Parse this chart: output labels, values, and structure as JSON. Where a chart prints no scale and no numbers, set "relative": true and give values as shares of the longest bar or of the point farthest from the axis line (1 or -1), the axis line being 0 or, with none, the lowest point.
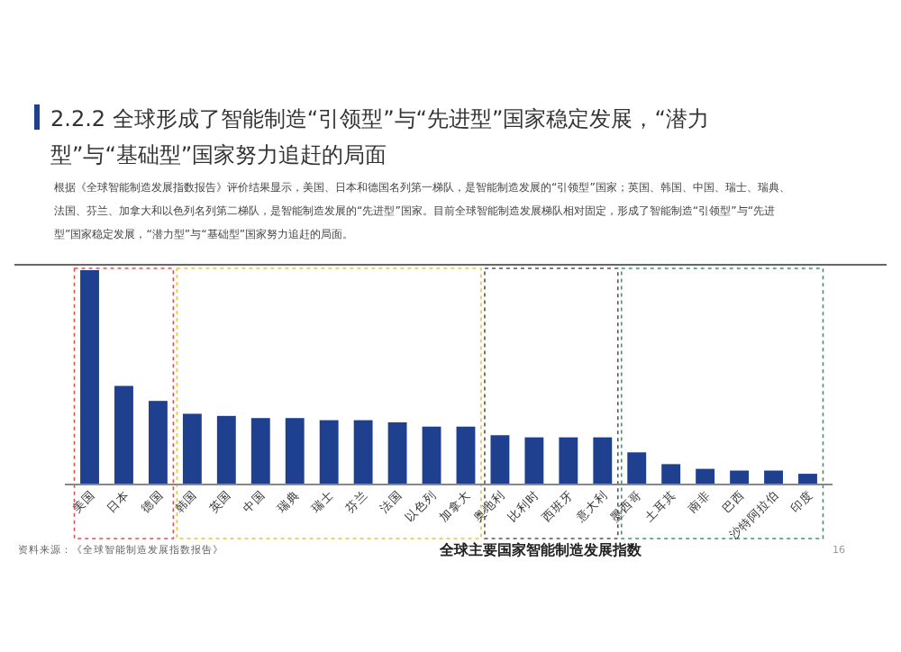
{
  "chart_data": {
    "type": "bar",
    "title": "2.2.2 全球形成了智能制造“引领型”与“先进型”国家稳定发展，“潜力型”与“基础型”国家努力追赶的局面",
    "subtitle": "根据《全球智能制造发展指数报告》评价结果显示，美国、日本和德国名列第一梯队，是智能制造发展的“引领型”国家；英国、韩国、中国、瑞士、瑞典、法国、芬兰、加拿大和以色列名列第二梯队，是智能制造发展的“先进型”国家。目前全球智能制造发展梯队相对固定，形成了智能制造“引领型”与“先进型”国家稳定发展，“潜力型”与“基础型”国家努力追赶的局面。",
    "xlabel": "全球主要国家智能制造发展指数",
    "annotations": [
      "资料来源：《全球智能制造发展指数报告》",
      "16"
    ],
    "categories": [
      "美国",
      "日本",
      "德国",
      "韩国",
      "英国",
      "中国",
      "瑞典",
      "瑞士",
      "芬兰",
      "法国",
      "以色列",
      "加拿大",
      "奥地利",
      "比利时",
      "西班牙",
      "意大利",
      "墨西哥",
      "土耳其",
      "南非",
      "巴西",
      "沙特阿拉伯",
      "印度"
    ],
    "values": [
      1,
      0.46,
      0.39,
      0.33,
      0.32,
      0.31,
      0.31,
      0.3,
      0.3,
      0.29,
      0.27,
      0.27,
      0.23,
      0.22,
      0.22,
      0.22,
      0.15,
      0.095,
      0.073,
      0.065,
      0.065,
      0.05
    ],
    "color": "#1f3f8f",
    "relative": true
  }
}
